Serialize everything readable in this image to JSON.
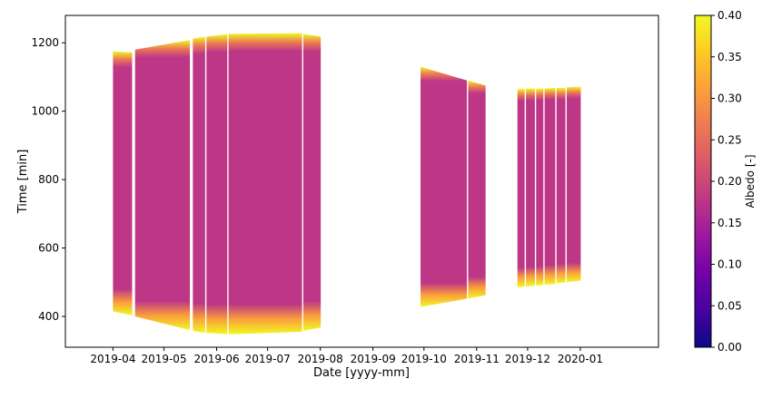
{
  "chart_data": {
    "type": "heatmap",
    "title": "",
    "xlabel": "Date [yyyy-mm]",
    "ylabel": "Time [min]",
    "colorbar_label": "Albedo [-]",
    "colormap": "plasma",
    "colormap_stops": [
      "#0d0887",
      "#46039f",
      "#7201a8",
      "#9c179e",
      "#bd3786",
      "#d8576b",
      "#ed7953",
      "#fb9f3a",
      "#fdca26",
      "#f0f921"
    ],
    "xlim": [
      "2019-03-04",
      "2020-02-16"
    ],
    "ylim": [
      310,
      1280
    ],
    "clim": [
      0.0,
      0.4
    ],
    "x_ticks": [
      "2019-04",
      "2019-05",
      "2019-06",
      "2019-07",
      "2019-08",
      "2019-09",
      "2019-10",
      "2019-11",
      "2019-12",
      "2020-01"
    ],
    "y_ticks": [
      400,
      600,
      800,
      1000,
      1200
    ],
    "colorbar_ticks": [
      "0.00",
      "0.05",
      "0.10",
      "0.15",
      "0.20",
      "0.25",
      "0.30",
      "0.35",
      "0.40"
    ],
    "typical_albedo": 0.19,
    "edge_albedo": 0.4,
    "blocks": [
      {
        "start": "2019-04-01",
        "end": "2019-04-12",
        "top": [
          1175,
          1172
        ],
        "bottom": [
          415,
          403
        ]
      },
      {
        "start": "2019-04-14",
        "end": "2019-05-16",
        "top": [
          1180,
          1208
        ],
        "bottom": [
          400,
          360
        ]
      },
      {
        "start": "2019-05-18",
        "end": "2019-05-25",
        "top": [
          1212,
          1218
        ],
        "bottom": [
          358,
          352
        ]
      },
      {
        "start": "2019-05-26",
        "end": "2019-06-07",
        "top": [
          1218,
          1225
        ],
        "bottom": [
          352,
          348
        ]
      },
      {
        "start": "2019-06-08",
        "end": "2019-07-21",
        "top": [
          1226,
          1228
        ],
        "bottom": [
          348,
          355
        ]
      },
      {
        "start": "2019-07-22",
        "end": "2019-08-01",
        "top": [
          1226,
          1218
        ],
        "bottom": [
          358,
          368
        ]
      },
      {
        "start": "2019-09-29",
        "end": "2019-10-26",
        "top": [
          1130,
          1090
        ],
        "bottom": [
          428,
          452
        ]
      },
      {
        "start": "2019-10-27",
        "end": "2019-11-06",
        "top": [
          1090,
          1075
        ],
        "bottom": [
          452,
          462
        ]
      },
      {
        "start": "2019-11-25",
        "end": "2019-11-29",
        "top": [
          1065,
          1065
        ],
        "bottom": [
          485,
          488
        ]
      },
      {
        "start": "2019-11-30",
        "end": "2019-12-05",
        "top": [
          1066,
          1066
        ],
        "bottom": [
          488,
          490
        ]
      },
      {
        "start": "2019-12-06",
        "end": "2019-12-10",
        "top": [
          1066,
          1066
        ],
        "bottom": [
          490,
          492
        ]
      },
      {
        "start": "2019-12-11",
        "end": "2019-12-17",
        "top": [
          1066,
          1068
        ],
        "bottom": [
          493,
          495
        ]
      },
      {
        "start": "2019-12-18",
        "end": "2019-12-23",
        "top": [
          1068,
          1068
        ],
        "bottom": [
          497,
          500
        ]
      },
      {
        "start": "2019-12-24",
        "end": "2020-01-01",
        "top": [
          1070,
          1072
        ],
        "bottom": [
          500,
          505
        ]
      }
    ]
  }
}
